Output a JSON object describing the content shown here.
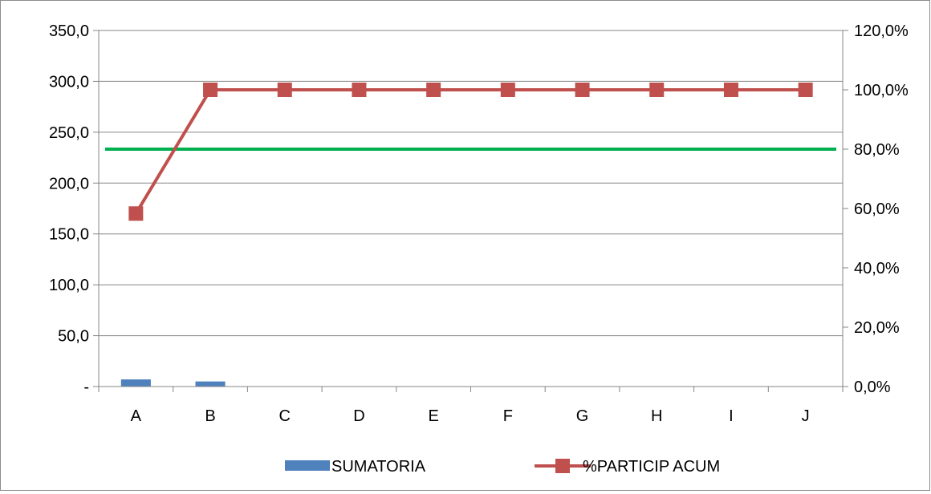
{
  "chart_data": {
    "type": "bar",
    "categories": [
      "A",
      "B",
      "C",
      "D",
      "E",
      "F",
      "G",
      "H",
      "I",
      "J"
    ],
    "y_left": {
      "min": 0,
      "max": 350,
      "step": 50,
      "ticks": [
        "-",
        "50,0",
        "100,0",
        "150,0",
        "200,0",
        "250,0",
        "300,0",
        "350,0"
      ]
    },
    "y_right": {
      "min": 0,
      "max": 120,
      "step": 20,
      "ticks": [
        "0,0%",
        "20,0%",
        "40,0%",
        "60,0%",
        "80,0%",
        "100,0%",
        "120,0%"
      ]
    },
    "series": [
      {
        "name": "SUMATORIA",
        "type": "bar",
        "axis": "left",
        "color": "#4f81bd",
        "values": [
          7,
          5,
          0,
          0,
          0,
          0,
          0,
          0,
          0,
          0
        ]
      },
      {
        "name": "%PARTICIP ACUM",
        "type": "line",
        "axis": "right",
        "color": "#c0504d",
        "marker": "square",
        "values": [
          58.3,
          100,
          100,
          100,
          100,
          100,
          100,
          100,
          100,
          100
        ]
      }
    ],
    "reference_line": {
      "axis": "right",
      "value": 80,
      "color": "#00b050"
    },
    "grid": true,
    "legend": "bottom",
    "title": "",
    "xlabel": "",
    "ylabel": ""
  }
}
